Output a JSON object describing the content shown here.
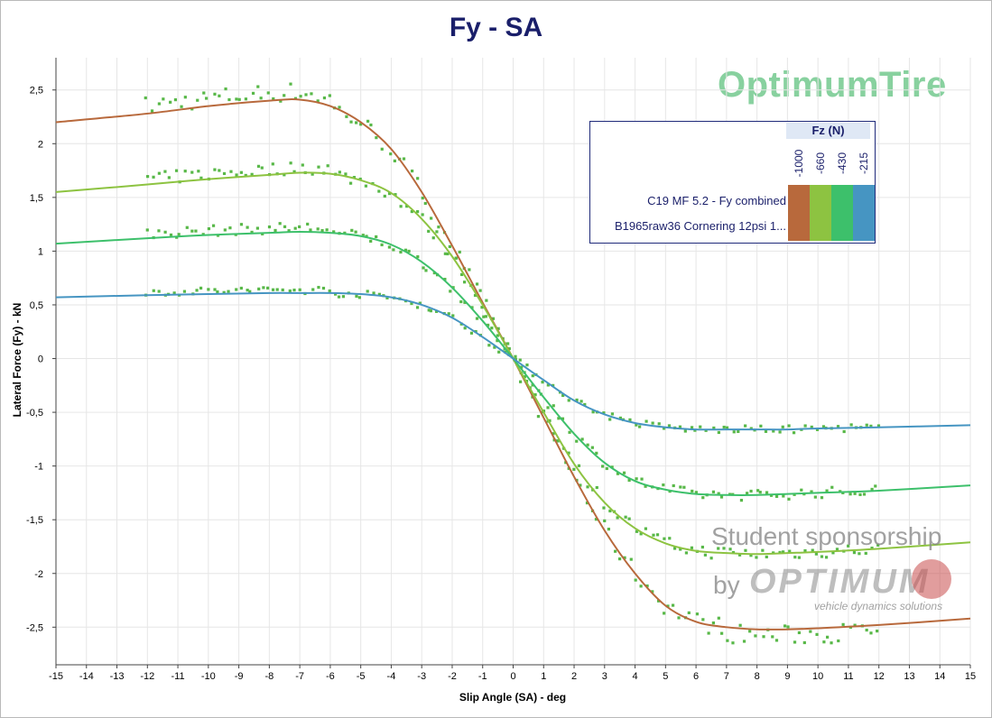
{
  "colors": {
    "fz_minus1000": "#b8693c",
    "fz_minus660": "#8dc341",
    "fz_minus430": "#3dc06b",
    "fz_minus215": "#4695c2",
    "measured": "#58b848"
  },
  "watermark": "OptimumTire",
  "sponsor": {
    "line1": "Student sponsorship",
    "by": "by",
    "brand": "OPTIMUM",
    "tagline": "vehicle dynamics solutions"
  },
  "legend": {
    "title": "Fz (N)",
    "loads": [
      "-1000",
      "-660",
      "-430",
      "-215"
    ],
    "rows": [
      "C19 MF 5.2 - Fy combined",
      "B1965raw36 Cornering 12psi 1..."
    ]
  },
  "chart_data": {
    "type": "line",
    "title": "Fy - SA",
    "xlabel": "Slip Angle (SA) - deg",
    "ylabel": "Lateral Force (Fy) - kN",
    "xlim": [
      -15,
      15
    ],
    "ylim": [
      -2.85,
      2.8
    ],
    "xticks": [
      -15,
      -14,
      -13,
      -12,
      -11,
      -10,
      -9,
      -8,
      -7,
      -6,
      -5,
      -4,
      -3,
      -2,
      -1,
      0,
      1,
      2,
      3,
      4,
      5,
      6,
      7,
      8,
      9,
      10,
      11,
      12,
      13,
      14,
      15
    ],
    "yticks": [
      -2.5,
      -2,
      -1.5,
      -1,
      -0.5,
      0,
      0.5,
      1,
      1.5,
      2,
      2.5
    ],
    "ytick_labels": [
      "-2,5",
      "-2",
      "-1,5",
      "-1",
      "-0,5",
      "0",
      "0,5",
      "1",
      "1,5",
      "2",
      "2,5"
    ],
    "grid": true,
    "series": [
      {
        "name": "-1000",
        "x": [
          -15,
          -12,
          -10,
          -8,
          -7,
          -6,
          -5,
          -4,
          -3,
          -2,
          -1,
          0,
          1,
          2,
          3,
          4,
          5,
          6,
          7,
          8,
          9,
          10,
          12,
          15
        ],
        "y": [
          2.2,
          2.28,
          2.35,
          2.4,
          2.41,
          2.35,
          2.2,
          1.95,
          1.55,
          1.05,
          0.52,
          0,
          -0.55,
          -1.1,
          -1.6,
          -2.0,
          -2.3,
          -2.45,
          -2.5,
          -2.52,
          -2.52,
          -2.51,
          -2.48,
          -2.42
        ]
      },
      {
        "name": "-660",
        "x": [
          -15,
          -12,
          -10,
          -8,
          -7,
          -6,
          -5,
          -4,
          -3,
          -2,
          -1,
          0,
          1,
          2,
          3,
          4,
          5,
          6,
          7,
          8,
          9,
          10,
          12,
          15
        ],
        "y": [
          1.55,
          1.62,
          1.67,
          1.71,
          1.73,
          1.72,
          1.66,
          1.54,
          1.3,
          0.95,
          0.5,
          0,
          -0.5,
          -0.98,
          -1.34,
          -1.58,
          -1.72,
          -1.79,
          -1.81,
          -1.82,
          -1.81,
          -1.8,
          -1.77,
          -1.71
        ]
      },
      {
        "name": "-430",
        "x": [
          -15,
          -12,
          -10,
          -8,
          -7,
          -6,
          -5,
          -4,
          -3,
          -2,
          -1,
          0,
          1,
          2,
          3,
          4,
          5,
          6,
          7,
          8,
          9,
          10,
          12,
          15
        ],
        "y": [
          1.07,
          1.12,
          1.15,
          1.17,
          1.18,
          1.17,
          1.14,
          1.06,
          0.9,
          0.66,
          0.35,
          0,
          -0.36,
          -0.7,
          -0.97,
          -1.14,
          -1.22,
          -1.26,
          -1.27,
          -1.27,
          -1.26,
          -1.25,
          -1.23,
          -1.18
        ]
      },
      {
        "name": "-215",
        "x": [
          -15,
          -12,
          -10,
          -8,
          -7,
          -6,
          -5,
          -4,
          -3,
          -2,
          -1,
          0,
          1,
          2,
          3,
          4,
          5,
          6,
          7,
          8,
          9,
          10,
          12,
          15
        ],
        "y": [
          0.57,
          0.59,
          0.6,
          0.61,
          0.61,
          0.61,
          0.6,
          0.57,
          0.5,
          0.38,
          0.2,
          0,
          -0.2,
          -0.39,
          -0.52,
          -0.6,
          -0.64,
          -0.66,
          -0.66,
          -0.66,
          -0.66,
          -0.65,
          -0.64,
          -0.62
        ]
      }
    ],
    "measured_series": {
      "name": "B1965raw36 Cornering 12psi 1...",
      "x_range": [
        -12,
        12
      ],
      "note": "scattered measured points around each load curve"
    }
  }
}
